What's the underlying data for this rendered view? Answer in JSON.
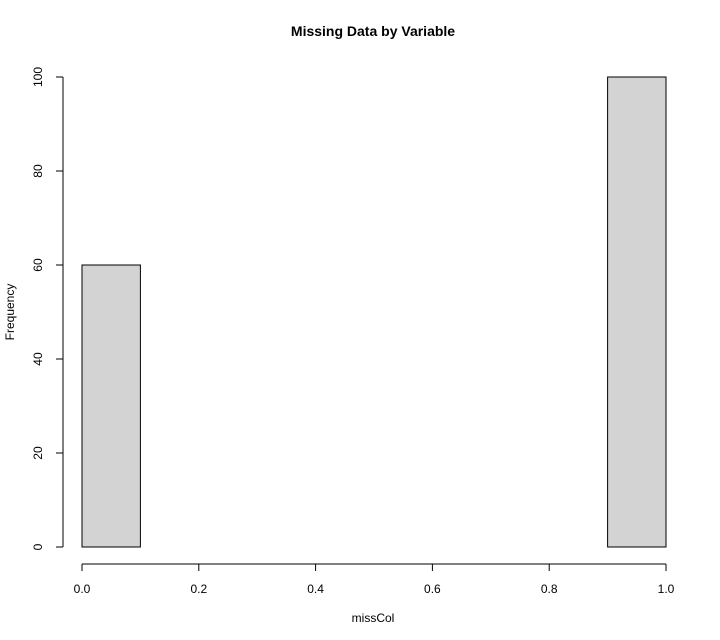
{
  "chart_data": {
    "type": "bar",
    "title": "Missing Data by Variable",
    "xlabel": "missCol",
    "ylabel": "Frequency",
    "bins": [
      {
        "x0": 0.0,
        "x1": 0.1,
        "count": 60
      },
      {
        "x0": 0.1,
        "x1": 0.2,
        "count": 0
      },
      {
        "x0": 0.2,
        "x1": 0.3,
        "count": 0
      },
      {
        "x0": 0.3,
        "x1": 0.4,
        "count": 0
      },
      {
        "x0": 0.4,
        "x1": 0.5,
        "count": 0
      },
      {
        "x0": 0.5,
        "x1": 0.6,
        "count": 0
      },
      {
        "x0": 0.6,
        "x1": 0.7,
        "count": 0
      },
      {
        "x0": 0.7,
        "x1": 0.8,
        "count": 0
      },
      {
        "x0": 0.8,
        "x1": 0.9,
        "count": 0
      },
      {
        "x0": 0.9,
        "x1": 1.0,
        "count": 100
      }
    ],
    "xlim": [
      0,
      1
    ],
    "ylim": [
      0,
      100
    ],
    "x_ticks": [
      "0.0",
      "0.2",
      "0.4",
      "0.6",
      "0.8",
      "1.0"
    ],
    "y_ticks": [
      "0",
      "20",
      "40",
      "60",
      "80",
      "100"
    ],
    "grid": false,
    "legend": "none",
    "bar_fill": "#d3d3d3",
    "bar_stroke": "#000000"
  }
}
